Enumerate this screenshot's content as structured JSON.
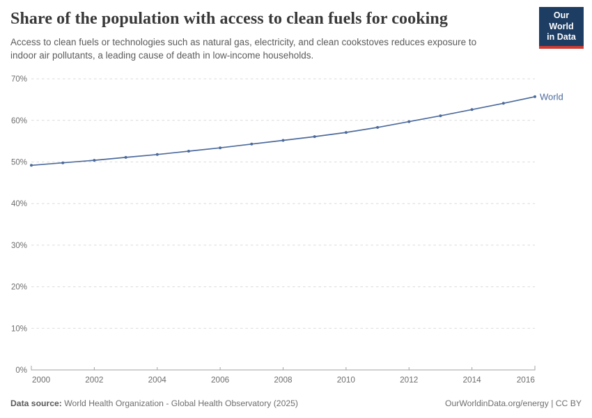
{
  "header": {
    "title": "Share of the population with access to clean fuels for cooking",
    "subtitle": "Access to clean fuels or technologies such as natural gas, electricity, and clean cookstoves reduces exposure to\nindoor air pollutants, a leading cause of death in low-income households.",
    "logo": {
      "line1": "Our World",
      "line2": "in Data",
      "bg_color": "#1d3d63",
      "stripe_color": "#cf3b32"
    }
  },
  "chart_data": {
    "type": "line",
    "title": "Share of the population with access to clean fuels for cooking",
    "x": [
      2000,
      2001,
      2002,
      2003,
      2004,
      2005,
      2006,
      2007,
      2008,
      2009,
      2010,
      2011,
      2012,
      2013,
      2014,
      2015,
      2016
    ],
    "series": [
      {
        "name": "World",
        "color": "#4c6a9c",
        "values": [
          49.2,
          49.8,
          50.4,
          51.1,
          51.8,
          52.6,
          53.4,
          54.3,
          55.2,
          56.1,
          57.1,
          58.3,
          59.7,
          61.1,
          62.6,
          64.1,
          65.7
        ]
      }
    ],
    "xlabel": "",
    "ylabel": "",
    "xlim": [
      2000,
      2016
    ],
    "ylim": [
      0,
      70
    ],
    "xticks": [
      2000,
      2002,
      2004,
      2006,
      2008,
      2010,
      2012,
      2014,
      2016
    ],
    "yticks": [
      0,
      10,
      20,
      30,
      40,
      50,
      60,
      70
    ],
    "ytick_suffix": "%",
    "grid": "horizontal-dashed",
    "legend_position": "end-of-line-label"
  },
  "theme": {
    "grid_color": "#dadada",
    "axis_color": "#a1a1a1",
    "tick_label_color": "#6e6e6e",
    "series_label_size": 13
  },
  "footer": {
    "datasource_label": "Data source:",
    "datasource_value": "World Health Organization - Global Health Observatory (2025)",
    "right_text": "OurWorldinData.org/energy | CC BY"
  }
}
